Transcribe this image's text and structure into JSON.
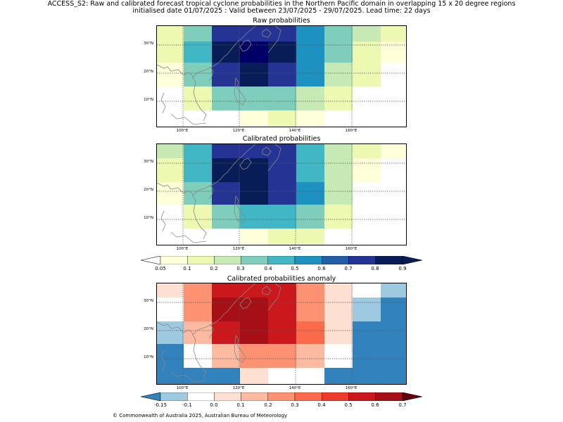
{
  "title_line1": "ACCESS_S2: Raw and calibrated forecast tropical cyclone probabilities in the Northern Pacific domain in overlapping 15 x 20 degree regions",
  "title_line2": "initialised date 01/07/2025 :  Valid between 23/07/2025 - 29/07/2025. Lead time: 22 days",
  "panels": [
    {
      "title": "Raw probabilities"
    },
    {
      "title": "Calibrated probabilities"
    },
    {
      "title": "Calibrated probabilities anomaly"
    }
  ],
  "lat_labels": [
    "30°N",
    "20°N",
    "10°N"
  ],
  "lon_labels": [
    "100°E",
    "120°E",
    "140°E",
    "160°E"
  ],
  "colorbar_prob": {
    "ticks": [
      "0.05",
      "0.1",
      "0.2",
      "0.3",
      "0.4",
      "0.5",
      "0.6",
      "0.7",
      "0.8",
      "0.9"
    ],
    "colors": [
      "#ffffd9",
      "#edf8b1",
      "#c7e9b4",
      "#7fcdbb",
      "#41b6c4",
      "#1d91c0",
      "#225ea8",
      "#253494",
      "#081d58"
    ],
    "under_color": "#ffffff",
    "over_color": "#081d58"
  },
  "colorbar_anom": {
    "ticks": [
      "-0.15",
      "-0.1",
      "0.0",
      "0.1",
      "0.2",
      "0.3",
      "0.4",
      "0.5",
      "0.6",
      "0.7"
    ],
    "colors": [
      "#9ecae1",
      "#ffffff",
      "#fee0d2",
      "#fcbba1",
      "#fc9272",
      "#fb6a4a",
      "#ef3b2c",
      "#cb181d",
      "#a50f15"
    ],
    "under_color": "#3182bd",
    "over_color": "#67000d"
  },
  "copyright": "© Commonwealth of Australia 2025, Australian Bureau of Meteorology"
}
